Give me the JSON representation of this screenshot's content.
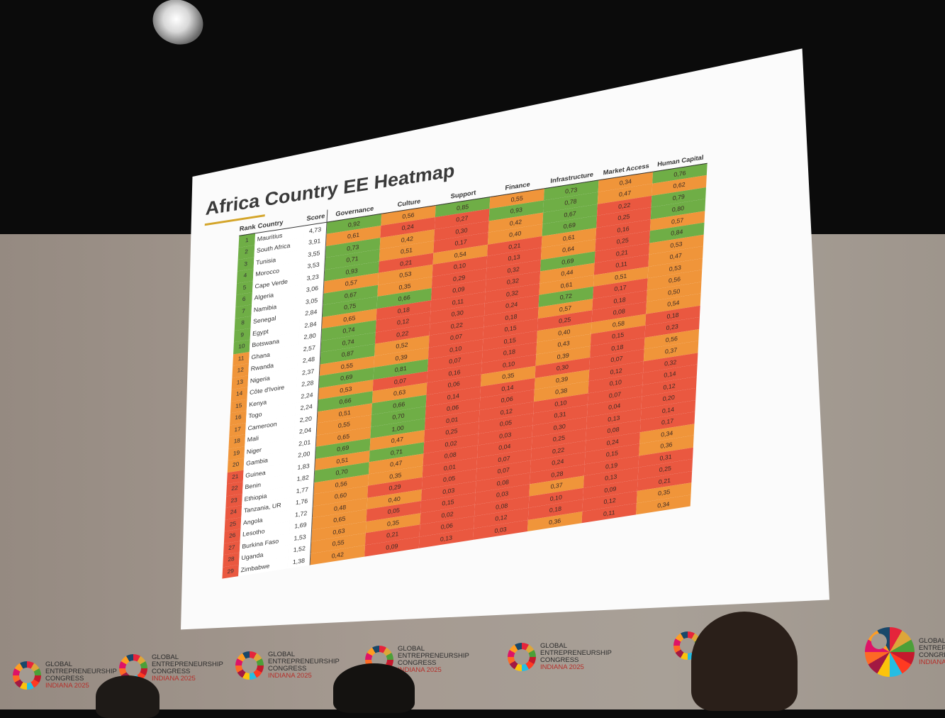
{
  "slide": {
    "title": "Africa Country EE Heatmap",
    "headers": {
      "rank": "Rank",
      "country": "Country",
      "score": "Score",
      "dimensions": [
        "Governance",
        "Culture",
        "Support",
        "Finance",
        "Infrastructure",
        "Market Access",
        "Human Capital"
      ]
    },
    "rows": [
      {
        "rank": "1",
        "country": "Mauritius",
        "score": "4,73",
        "values": [
          "0,92",
          "0,56",
          "0,85",
          "0,55",
          "0,73",
          "0,34",
          "0,76"
        ]
      },
      {
        "rank": "2",
        "country": "South Africa",
        "score": "3,91",
        "values": [
          "0,61",
          "0,24",
          "0,27",
          "0,93",
          "0,78",
          "0,47",
          "0,62"
        ]
      },
      {
        "rank": "3",
        "country": "Tunisia",
        "score": "3,55",
        "values": [
          "0,73",
          "0,42",
          "0,30",
          "0,42",
          "0,67",
          "0,22",
          "0,79"
        ]
      },
      {
        "rank": "4",
        "country": "Morocco",
        "score": "3,53",
        "values": [
          "0,71",
          "0,51",
          "0,17",
          "0,40",
          "0,69",
          "0,25",
          "0,80"
        ]
      },
      {
        "rank": "5",
        "country": "Cape Verde",
        "score": "3,23",
        "values": [
          "0,93",
          "0,21",
          "0,54",
          "0,21",
          "0,61",
          "0,16",
          "0,57"
        ]
      },
      {
        "rank": "6",
        "country": "Algeria",
        "score": "3,06",
        "values": [
          "0,57",
          "0,53",
          "0,10",
          "0,13",
          "0,64",
          "0,25",
          "0,84"
        ]
      },
      {
        "rank": "7",
        "country": "Namibia",
        "score": "3,05",
        "values": [
          "0,67",
          "0,35",
          "0,29",
          "0,32",
          "0,69",
          "0,21",
          "0,53"
        ]
      },
      {
        "rank": "8",
        "country": "Senegal",
        "score": "2,84",
        "values": [
          "0,75",
          "0,66",
          "0,09",
          "0,32",
          "0,44",
          "0,11",
          "0,47"
        ]
      },
      {
        "rank": "9",
        "country": "Egypt",
        "score": "2,84",
        "values": [
          "0,65",
          "0,18",
          "0,11",
          "0,32",
          "0,61",
          "0,51",
          "0,53"
        ]
      },
      {
        "rank": "10",
        "country": "Botswana",
        "score": "2,80",
        "values": [
          "0,74",
          "0,12",
          "0,30",
          "0,24",
          "0,72",
          "0,17",
          "0,56"
        ]
      },
      {
        "rank": "11",
        "country": "Ghana",
        "score": "2,57",
        "values": [
          "0,74",
          "0,22",
          "0,22",
          "0,18",
          "0,57",
          "0,18",
          "0,50"
        ]
      },
      {
        "rank": "12",
        "country": "Rwanda",
        "score": "2,48",
        "values": [
          "0,87",
          "0,52",
          "0,07",
          "0,15",
          "0,25",
          "0,08",
          "0,54"
        ]
      },
      {
        "rank": "13",
        "country": "Nigeria",
        "score": "2,37",
        "values": [
          "0,55",
          "0,39",
          "0,10",
          "0,15",
          "0,40",
          "0,58",
          "0,18"
        ]
      },
      {
        "rank": "14",
        "country": "Côte d'Ivoire",
        "score": "2,28",
        "values": [
          "0,69",
          "0,81",
          "0,07",
          "0,18",
          "0,43",
          "0,15",
          "0,23"
        ]
      },
      {
        "rank": "15",
        "country": "Kenya",
        "score": "2,24",
        "values": [
          "0,53",
          "0,07",
          "0,16",
          "0,10",
          "0,39",
          "0,18",
          "0,56"
        ]
      },
      {
        "rank": "16",
        "country": "Togo",
        "score": "2,24",
        "values": [
          "0,66",
          "0,63",
          "0,06",
          "0,35",
          "0,30",
          "0,07",
          "0,37"
        ]
      },
      {
        "rank": "17",
        "country": "Cameroon",
        "score": "2,20",
        "values": [
          "0,51",
          "0,66",
          "0,14",
          "0,14",
          "0,39",
          "0,12",
          "0,32"
        ]
      },
      {
        "rank": "18",
        "country": "Mali",
        "score": "2,04",
        "values": [
          "0,55",
          "0,70",
          "0,06",
          "0,06",
          "0,38",
          "0,10",
          "0,14"
        ]
      },
      {
        "rank": "19",
        "country": "Niger",
        "score": "2,01",
        "values": [
          "0,65",
          "1,00",
          "0,01",
          "0,12",
          "0,10",
          "0,07",
          "0,12"
        ]
      },
      {
        "rank": "20",
        "country": "Gambia",
        "score": "2,00",
        "values": [
          "0,69",
          "0,47",
          "0,25",
          "0,05",
          "0,31",
          "0,04",
          "0,20"
        ]
      },
      {
        "rank": "21",
        "country": "Guinea",
        "score": "1,83",
        "values": [
          "0,51",
          "0,71",
          "0,02",
          "0,03",
          "0,30",
          "0,13",
          "0,14"
        ]
      },
      {
        "rank": "22",
        "country": "Benin",
        "score": "1,82",
        "values": [
          "0,70",
          "0,47",
          "0,08",
          "0,04",
          "0,25",
          "0,08",
          "0,17"
        ]
      },
      {
        "rank": "23",
        "country": "Ethiopia",
        "score": "1,77",
        "values": [
          "0,56",
          "0,35",
          "0,01",
          "0,07",
          "0,22",
          "0,24",
          "0,34"
        ]
      },
      {
        "rank": "24",
        "country": "Tanzania, UR",
        "score": "1,76",
        "values": [
          "0,60",
          "0,29",
          "0,05",
          "0,07",
          "0,24",
          "0,15",
          "0,36"
        ]
      },
      {
        "rank": "25",
        "country": "Angola",
        "score": "1,72",
        "values": [
          "0,48",
          "0,40",
          "0,03",
          "0,08",
          "0,28",
          "0,19",
          "0,31"
        ]
      },
      {
        "rank": "26",
        "country": "Lesotho",
        "score": "1,69",
        "values": [
          "0,65",
          "0,05",
          "0,15",
          "0,03",
          "0,37",
          "0,13",
          "0,25"
        ]
      },
      {
        "rank": "27",
        "country": "Burkina Faso",
        "score": "1,53",
        "values": [
          "0,63",
          "0,35",
          "0,02",
          "0,08",
          "0,10",
          "0,09",
          "0,21"
        ]
      },
      {
        "rank": "28",
        "country": "Uganda",
        "score": "1,52",
        "values": [
          "0,55",
          "0,21",
          "0,06",
          "0,12",
          "0,18",
          "0,12",
          "0,35"
        ]
      },
      {
        "rank": "29",
        "country": "Zimbabwe",
        "score": "1,38",
        "values": [
          "0,42",
          "0,09",
          "0,13",
          "0,03",
          "0,36",
          "0,11",
          "0,34"
        ]
      }
    ]
  },
  "banner": {
    "line1": "GLOBAL",
    "line2": "ENTREPRENEURSHIP",
    "line3": "CONGRESS",
    "line4": "INDIANA 2025"
  },
  "colors": {
    "high": "#6fae46",
    "mid": "#f0953a",
    "low": "#ea5840",
    "accent_rule": "#d4a52a"
  }
}
